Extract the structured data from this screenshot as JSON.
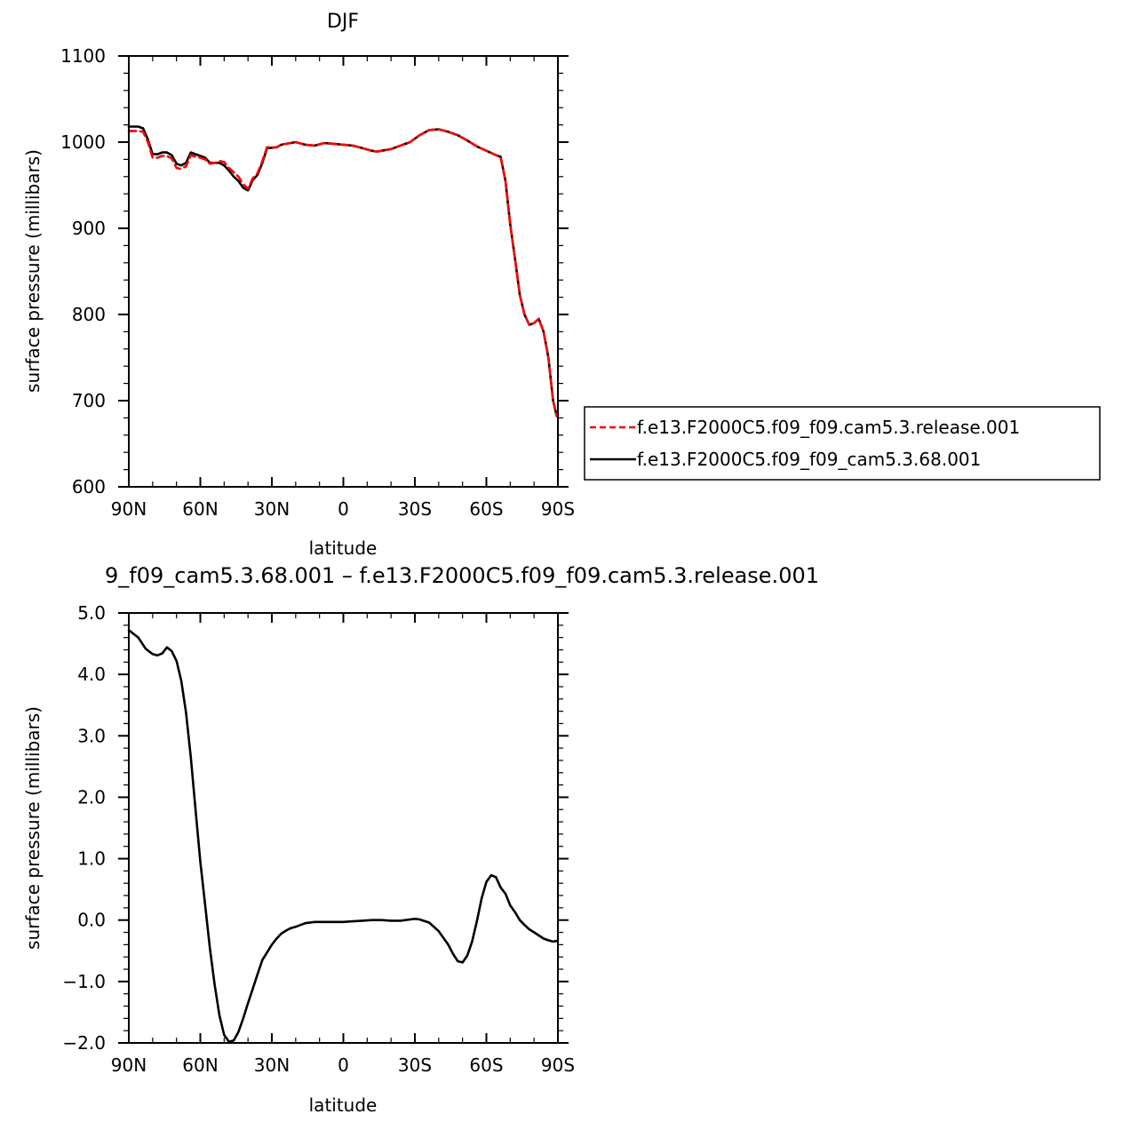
{
  "chart_data": [
    {
      "type": "line",
      "title": "DJF",
      "xlabel": "latitude",
      "ylabel": "surface pressure (millibars)",
      "xlim": [
        90,
        -90
      ],
      "ylim": [
        600,
        1100
      ],
      "x_tick_values": [
        90,
        60,
        30,
        0,
        -30,
        -60,
        -90
      ],
      "x_tick_labels": [
        "90N",
        "60N",
        "30N",
        "0",
        "30S",
        "60S",
        "90S"
      ],
      "y_tick_values": [
        600,
        700,
        800,
        900,
        1000,
        1100
      ],
      "y_tick_labels": [
        "600",
        "700",
        "800",
        "900",
        "1000",
        "1100"
      ],
      "legend_position": "right",
      "series": [
        {
          "name": "f.e13.F2000C5.f09_f09.cam5.3.release.001",
          "color": "#ff0000",
          "style": "dashed",
          "x": [
            90,
            86,
            84,
            82,
            80,
            78,
            76,
            74,
            72,
            70,
            68,
            66,
            64,
            62,
            60,
            58,
            56,
            54,
            52,
            50,
            48,
            46,
            44,
            42,
            40,
            38,
            36,
            34,
            32,
            28,
            26,
            24,
            20,
            16,
            12,
            8,
            4,
            0,
            -4,
            -8,
            -12,
            -14,
            -16,
            -20,
            -24,
            -28,
            -32,
            -36,
            -40,
            -44,
            -48,
            -52,
            -56,
            -60,
            -64,
            -66,
            -68,
            -70,
            -72,
            -74,
            -76,
            -78,
            -80,
            -82,
            -84,
            -86,
            -88,
            -89.5
          ],
          "y": [
            1013,
            1013,
            1012,
            1000,
            982,
            982,
            984,
            984,
            981,
            970,
            969,
            972,
            985,
            983,
            982,
            980,
            975,
            976,
            978,
            977,
            970,
            965,
            960,
            951,
            946,
            958,
            964,
            978,
            994,
            994,
            997,
            998,
            1000,
            997,
            996,
            999,
            998,
            997,
            996,
            993,
            990,
            989,
            990,
            992,
            996,
            1000,
            1008,
            1014,
            1015,
            1012,
            1008,
            1002,
            995,
            990,
            985,
            982,
            955,
            905,
            865,
            823,
            800,
            788,
            790,
            795,
            780,
            750,
            700,
            682
          ]
        },
        {
          "name": "f.e13.F2000C5.f09_f09_cam5.3.68.001",
          "color": "#000000",
          "style": "solid",
          "x": [
            90,
            86,
            84,
            82,
            80,
            78,
            76,
            74,
            72,
            70,
            68,
            66,
            64,
            62,
            60,
            58,
            56,
            54,
            52,
            50,
            48,
            46,
            44,
            42,
            40,
            38,
            36,
            34,
            32,
            28,
            26,
            24,
            20,
            16,
            12,
            8,
            4,
            0,
            -4,
            -8,
            -12,
            -14,
            -16,
            -20,
            -24,
            -28,
            -32,
            -36,
            -40,
            -44,
            -48,
            -52,
            -56,
            -60,
            -64,
            -66,
            -68,
            -70,
            -72,
            -74,
            -76,
            -78,
            -80,
            -82,
            -84,
            -86,
            -88,
            -89.5
          ],
          "y": [
            1018,
            1018,
            1016,
            1003,
            986,
            986,
            988,
            988,
            985,
            975,
            973,
            976,
            988,
            986,
            984,
            982,
            976,
            976,
            976,
            973,
            967,
            960,
            955,
            947,
            944,
            956,
            962,
            976,
            993,
            994,
            997,
            998,
            1000,
            997,
            996,
            999,
            998,
            997,
            996,
            993,
            990,
            989,
            990,
            992,
            996,
            1000,
            1008,
            1014,
            1015,
            1012,
            1008,
            1002,
            995,
            990,
            985,
            983,
            955,
            905,
            865,
            823,
            800,
            788,
            790,
            795,
            780,
            750,
            700,
            682
          ]
        }
      ]
    },
    {
      "type": "line",
      "title": "9_f09_cam5.3.68.001 – f.e13.F2000C5.f09_f09.cam5.3.release.001",
      "xlabel": "latitude",
      "ylabel": "surface pressure (millibars)",
      "xlim": [
        90,
        -90
      ],
      "ylim": [
        -2.0,
        5.0
      ],
      "x_tick_values": [
        90,
        60,
        30,
        0,
        -30,
        -60,
        -90
      ],
      "x_tick_labels": [
        "90N",
        "60N",
        "30N",
        "0",
        "30S",
        "60S",
        "90S"
      ],
      "y_tick_values": [
        -2.0,
        -1.0,
        0.0,
        1.0,
        2.0,
        3.0,
        4.0,
        5.0
      ],
      "y_tick_labels": [
        "−2.0",
        "−1.0",
        "0.0",
        "1.0",
        "2.0",
        "3.0",
        "4.0",
        "5.0"
      ],
      "series": [
        {
          "color": "#000000",
          "style": "solid",
          "x": [
            90,
            86,
            83,
            80,
            78,
            76,
            74,
            72,
            70,
            68,
            66,
            64,
            62,
            60,
            58,
            56,
            54,
            52,
            50,
            48,
            46,
            44,
            42,
            40,
            38,
            36,
            34,
            30,
            28,
            26,
            24,
            22,
            20,
            16,
            12,
            8,
            4,
            0,
            -4,
            -8,
            -12,
            -16,
            -20,
            -24,
            -28,
            -30,
            -32,
            -36,
            -40,
            -44,
            -46,
            -48,
            -50,
            -52,
            -54,
            -56,
            -58,
            -60,
            -62,
            -64,
            -66,
            -68,
            -70,
            -72,
            -74,
            -76,
            -78,
            -80,
            -82,
            -84,
            -86,
            -88,
            -89.5
          ],
          "y": [
            4.72,
            4.6,
            4.42,
            4.33,
            4.31,
            4.34,
            4.44,
            4.38,
            4.22,
            3.9,
            3.38,
            2.65,
            1.8,
            0.95,
            0.25,
            -0.45,
            -1.05,
            -1.55,
            -1.87,
            -1.98,
            -1.96,
            -1.82,
            -1.6,
            -1.35,
            -1.12,
            -0.88,
            -0.65,
            -0.4,
            -0.3,
            -0.22,
            -0.17,
            -0.13,
            -0.11,
            -0.05,
            -0.03,
            -0.03,
            -0.03,
            -0.03,
            -0.02,
            -0.01,
            0.0,
            0.0,
            -0.01,
            -0.01,
            0.01,
            0.02,
            0.01,
            -0.04,
            -0.18,
            -0.4,
            -0.55,
            -0.67,
            -0.69,
            -0.58,
            -0.35,
            -0.02,
            0.35,
            0.62,
            0.73,
            0.7,
            0.53,
            0.43,
            0.24,
            0.13,
            0.0,
            -0.08,
            -0.15,
            -0.2,
            -0.25,
            -0.3,
            -0.33,
            -0.35,
            -0.34
          ]
        }
      ]
    }
  ]
}
